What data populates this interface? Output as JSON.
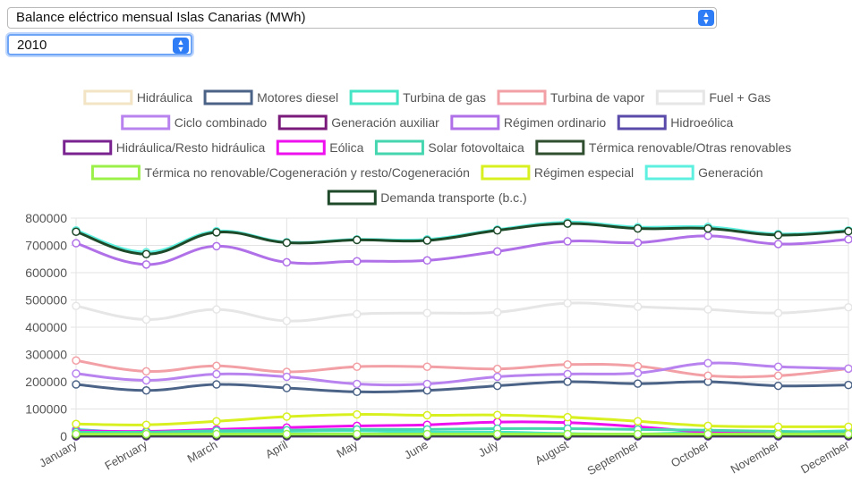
{
  "controls": {
    "dataset_select": "Balance eléctrico mensual Islas Canarias (MWh)",
    "year_select": "2010",
    "arrow_icon": "up-down-chevron-icon"
  },
  "chart_data": {
    "type": "line",
    "categories": [
      "January",
      "February",
      "March",
      "April",
      "May",
      "June",
      "July",
      "August",
      "September",
      "October",
      "November",
      "December"
    ],
    "ylim": [
      0,
      800000
    ],
    "yticks": [
      0,
      100000,
      200000,
      300000,
      400000,
      500000,
      600000,
      700000,
      800000
    ],
    "grid": true,
    "legend_position": "top",
    "series": [
      {
        "name": "Hidráulica",
        "color": "#f2e4c4",
        "values": [
          1000,
          1000,
          1000,
          1000,
          1000,
          1000,
          1000,
          1000,
          1000,
          1000,
          1000,
          1000
        ]
      },
      {
        "name": "Motores diesel",
        "color": "#4b6387",
        "values": [
          190000,
          168000,
          190000,
          177000,
          163000,
          168000,
          185000,
          200000,
          193000,
          200000,
          185000,
          188000
        ]
      },
      {
        "name": "Turbina de gas",
        "color": "#45e5c5",
        "values": [
          25000,
          12000,
          12000,
          18000,
          20000,
          15000,
          15000,
          10000,
          8000,
          15000,
          15000,
          20000
        ]
      },
      {
        "name": "Turbina de vapor",
        "color": "#f2a0a5",
        "values": [
          278000,
          238000,
          258000,
          236000,
          255000,
          255000,
          247000,
          263000,
          257000,
          222000,
          222000,
          248000
        ]
      },
      {
        "name": "Fuel + Gas",
        "color": "#e6e6e6",
        "values": [
          478000,
          428000,
          465000,
          423000,
          448000,
          452000,
          455000,
          488000,
          475000,
          465000,
          452000,
          473000
        ]
      },
      {
        "name": "Ciclo combinado",
        "color": "#b983ef",
        "values": [
          230000,
          205000,
          228000,
          218000,
          192000,
          192000,
          218000,
          228000,
          232000,
          268000,
          255000,
          248000
        ]
      },
      {
        "name": "Generación auxiliar",
        "color": "#7a1a7a",
        "values": [
          0,
          0,
          0,
          0,
          0,
          0,
          0,
          0,
          0,
          0,
          0,
          0
        ]
      },
      {
        "name": "Régimen ordinario",
        "color": "#b070e8",
        "values": [
          708000,
          630000,
          697000,
          638000,
          642000,
          645000,
          678000,
          715000,
          710000,
          735000,
          705000,
          722000
        ]
      },
      {
        "name": "Hidroeólica",
        "color": "#5a4baa",
        "values": [
          0,
          0,
          0,
          0,
          0,
          0,
          0,
          0,
          0,
          0,
          0,
          0
        ]
      },
      {
        "name": "Hidráulica/Resto hidráulica",
        "color": "#7a2390",
        "values": [
          1500,
          1500,
          1500,
          1500,
          1500,
          1500,
          1500,
          1500,
          1500,
          1500,
          1500,
          1500
        ]
      },
      {
        "name": "Eólica",
        "color": "#ee10ee",
        "values": [
          20000,
          18000,
          25000,
          32000,
          38000,
          42000,
          52000,
          50000,
          35000,
          15000,
          12000,
          15000
        ]
      },
      {
        "name": "Solar fotovoltaica",
        "color": "#45d6b0",
        "values": [
          15000,
          15000,
          20000,
          22000,
          25000,
          25000,
          28000,
          28000,
          25000,
          22000,
          18000,
          15000
        ]
      },
      {
        "name": "Térmica renovable/Otras renovables",
        "color": "#2f4f2f",
        "values": [
          3000,
          3000,
          3000,
          3000,
          3000,
          3000,
          3000,
          3000,
          3000,
          3000,
          3000,
          3000
        ]
      },
      {
        "name": "Térmica no renovable/Cogeneración y resto/Cogeneración",
        "color": "#9cf04a",
        "values": [
          8000,
          8000,
          8000,
          8000,
          8000,
          8000,
          8000,
          8000,
          8000,
          8000,
          8000,
          8000
        ]
      },
      {
        "name": "Régimen especial",
        "color": "#d9f020",
        "values": [
          45000,
          42000,
          55000,
          72000,
          80000,
          77000,
          78000,
          70000,
          55000,
          38000,
          35000,
          35000
        ]
      },
      {
        "name": "Generación",
        "color": "#5df0e0",
        "values": [
          755000,
          675000,
          752000,
          712000,
          722000,
          722000,
          758000,
          785000,
          767000,
          768000,
          742000,
          755000
        ]
      },
      {
        "name": "Demanda transporte (b.c.)",
        "color": "#1f4a2a",
        "values": [
          750000,
          668000,
          748000,
          710000,
          720000,
          718000,
          755000,
          780000,
          762000,
          762000,
          738000,
          752000
        ]
      }
    ]
  }
}
